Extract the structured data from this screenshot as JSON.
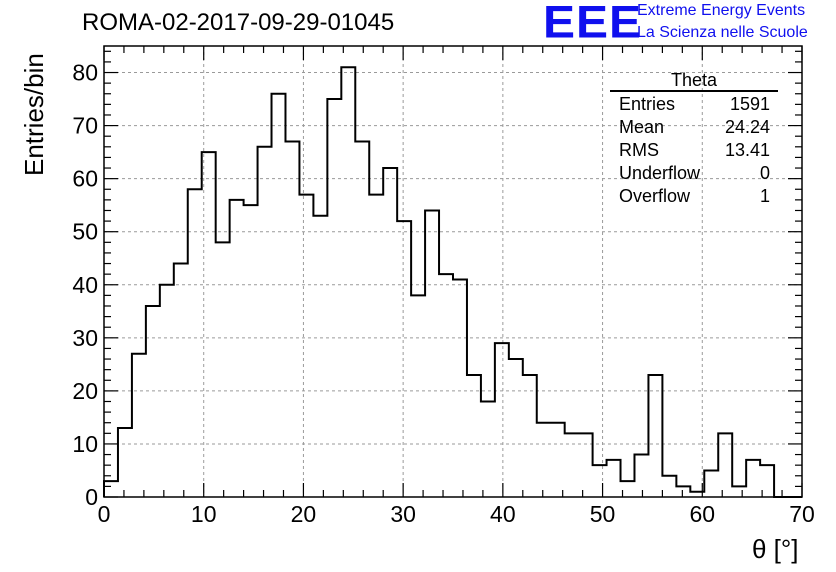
{
  "chart_data": {
    "type": "bar",
    "title": "ROMA-02-2017-09-29-01045",
    "xlabel": "θ [°]",
    "ylabel": "Entries/bin",
    "xlim": [
      0,
      70
    ],
    "ylim": [
      0,
      85
    ],
    "xticks": [
      "0",
      "10",
      "20",
      "30",
      "40",
      "50",
      "60",
      "70"
    ],
    "yticks": [
      "0",
      "10",
      "20",
      "30",
      "40",
      "50",
      "60",
      "70",
      "80"
    ],
    "grid": true,
    "style": "step-histogram",
    "bin_width": 1.4,
    "bin_edges_start": 0,
    "values": [
      3,
      13,
      27,
      36,
      40,
      44,
      58,
      65,
      48,
      56,
      55,
      66,
      76,
      67,
      57,
      53,
      75,
      81,
      67,
      57,
      62,
      52,
      38,
      54,
      42,
      41,
      23,
      18,
      29,
      26,
      23,
      14,
      14,
      12,
      12,
      6,
      7,
      3,
      8,
      23,
      4,
      2,
      1,
      5,
      12,
      2,
      7,
      6,
      0,
      0
    ],
    "stats_box": {
      "name": "Theta",
      "rows": [
        {
          "label": "Entries",
          "value": "1591"
        },
        {
          "label": "Mean",
          "value": "24.24"
        },
        {
          "label": "RMS",
          "value": "13.41"
        },
        {
          "label": "Underflow",
          "value": "0"
        },
        {
          "label": "Overflow",
          "value": "1"
        }
      ]
    },
    "logo": {
      "text": "EEE",
      "line1": "Extreme Energy Events",
      "line2": "La Scienza nelle Scuole",
      "color": "#1010ee"
    }
  }
}
